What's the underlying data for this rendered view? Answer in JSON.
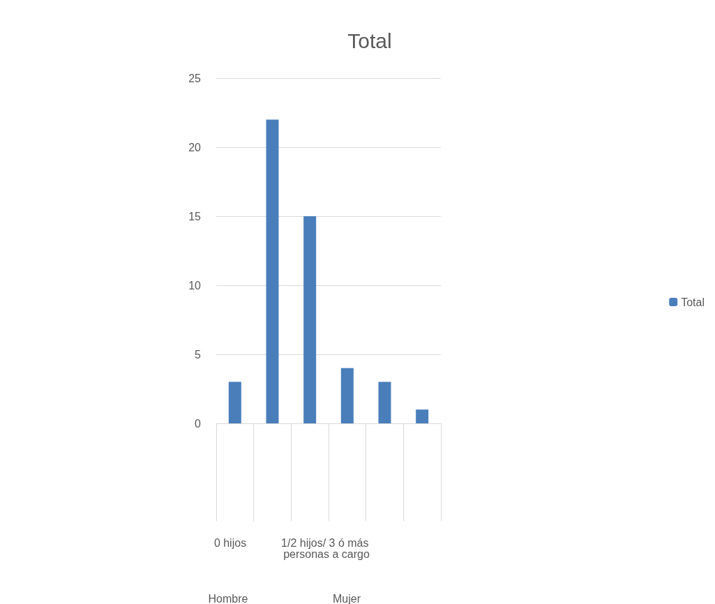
{
  "chart_data": {
    "type": "bar",
    "title": "Total",
    "categories": [
      null,
      null,
      null,
      null,
      null,
      null
    ],
    "series": [
      {
        "name": "Total",
        "color": "#4a7ebb",
        "values": [
          3,
          22,
          15,
          4,
          3,
          1
        ]
      }
    ],
    "ylim": [
      0,
      25
    ],
    "yticks": [
      0,
      5,
      10,
      15,
      20,
      25
    ],
    "grid": "y",
    "legend": "right",
    "annotations": [
      "0 hijos",
      "1/2 hijos/ 3 ó más personas a cargo",
      "Hombre",
      "Mujer"
    ]
  }
}
